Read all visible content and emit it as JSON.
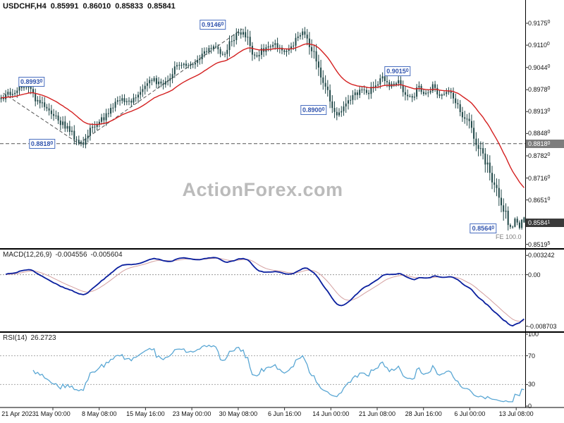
{
  "header": {
    "symbol_timeframe": "USDCHF,H4",
    "open": "0.85991",
    "high": "0.86010",
    "low": "0.85833",
    "close": "0.85841"
  },
  "watermark": "ActionForex.com",
  "chart_data": {
    "type": "candlestick",
    "symbol": "USDCHF",
    "timeframe": "H4",
    "current": {
      "open": 0.85991,
      "high": 0.8601,
      "low": 0.85833,
      "close": 0.85841
    },
    "bar_count": 230,
    "x_ticks": [
      {
        "label": "21 Apr 2023",
        "x": 0.003,
        "align": "left"
      },
      {
        "label": "1 May 00:00",
        "x": 0.1007
      },
      {
        "label": "8 May 08:00",
        "x": 0.1889
      },
      {
        "label": "15 May 16:00",
        "x": 0.277
      },
      {
        "label": "23 May 00:00",
        "x": 0.3652
      },
      {
        "label": "30 May 08:00",
        "x": 0.4535
      },
      {
        "label": "6 Jun 16:00",
        "x": 0.5417
      },
      {
        "label": "14 Jun 00:00",
        "x": 0.6299
      },
      {
        "label": "21 Jun 08:00",
        "x": 0.7181
      },
      {
        "label": "28 Jun 16:00",
        "x": 0.8063
      },
      {
        "label": "6 Jul 00:00",
        "x": 0.8945
      },
      {
        "label": "13 Jul 08:00",
        "x": 0.9828
      }
    ],
    "price_panel": {
      "y_range": [
        0.8508,
        0.9244
      ],
      "y_ticks": [
        {
          "value": 0.9175,
          "label": "0.91750"
        },
        {
          "value": 0.911,
          "label": "0.91100"
        },
        {
          "value": 0.9044,
          "label": "0.90440"
        },
        {
          "value": 0.8978,
          "label": "0.89780"
        },
        {
          "value": 0.8913,
          "label": "0.89130"
        },
        {
          "value": 0.8848,
          "label": "0.88480"
        },
        {
          "value": 0.8782,
          "label": "0.87820"
        },
        {
          "value": 0.8716,
          "label": "0.87160"
        },
        {
          "value": 0.8651,
          "label": "0.86510"
        },
        {
          "value": 0.85195,
          "label": "0.85195"
        }
      ],
      "dashed_level": 0.8818,
      "trend_lines": [
        {
          "x1": 0.006,
          "p1": 0.8968,
          "x2": 0.15,
          "p2": 0.8818
        },
        {
          "x1": 0.15,
          "p1": 0.8818,
          "x2": 0.461,
          "p2": 0.9158
        }
      ],
      "markers": [
        {
          "label": "0.91460",
          "x": 0.405,
          "price": 0.917
        },
        {
          "label": "0.89930",
          "x": 0.06,
          "price": 0.9001
        },
        {
          "label": "0.88180",
          "x": 0.08,
          "price": 0.8818
        },
        {
          "label": "0.90150",
          "x": 0.757,
          "price": 0.9032
        },
        {
          "label": "0.89000",
          "x": 0.597,
          "price": 0.8918
        },
        {
          "label": "0.85640",
          "x": 0.92,
          "price": 0.8566
        }
      ],
      "axis_badges": [
        {
          "name": "level-price-badge",
          "label": "0.88180",
          "value": 0.8818,
          "bg": "#7d7d7d"
        },
        {
          "name": "current-price-badge",
          "label": "0.85841",
          "value": 0.85841,
          "bg": "#3a3a3a"
        }
      ],
      "fe_label": "FE 100.0"
    },
    "price_path": [
      [
        0.0,
        0.895
      ],
      [
        0.027,
        0.8976
      ],
      [
        0.047,
        0.8993
      ],
      [
        0.074,
        0.8938
      ],
      [
        0.101,
        0.8898
      ],
      [
        0.128,
        0.8858
      ],
      [
        0.15,
        0.882
      ],
      [
        0.158,
        0.8825
      ],
      [
        0.174,
        0.8868
      ],
      [
        0.201,
        0.8898
      ],
      [
        0.228,
        0.8952
      ],
      [
        0.248,
        0.8938
      ],
      [
        0.268,
        0.8968
      ],
      [
        0.289,
        0.9008
      ],
      [
        0.309,
        0.8988
      ],
      [
        0.329,
        0.9036
      ],
      [
        0.349,
        0.9058
      ],
      [
        0.369,
        0.9044
      ],
      [
        0.389,
        0.9086
      ],
      [
        0.409,
        0.9108
      ],
      [
        0.427,
        0.9082
      ],
      [
        0.446,
        0.9136
      ],
      [
        0.463,
        0.9152
      ],
      [
        0.483,
        0.9078
      ],
      [
        0.503,
        0.91
      ],
      [
        0.523,
        0.9122
      ],
      [
        0.54,
        0.9088
      ],
      [
        0.557,
        0.9108
      ],
      [
        0.574,
        0.9148
      ],
      [
        0.591,
        0.9112
      ],
      [
        0.604,
        0.9052
      ],
      [
        0.62,
        0.8988
      ],
      [
        0.634,
        0.8928
      ],
      [
        0.647,
        0.8902
      ],
      [
        0.66,
        0.8938
      ],
      [
        0.674,
        0.8958
      ],
      [
        0.687,
        0.8984
      ],
      [
        0.701,
        0.8958
      ],
      [
        0.714,
        0.8998
      ],
      [
        0.732,
        0.9014
      ],
      [
        0.745,
        0.8988
      ],
      [
        0.758,
        0.9008
      ],
      [
        0.772,
        0.8968
      ],
      [
        0.785,
        0.895
      ],
      [
        0.799,
        0.8984
      ],
      [
        0.812,
        0.8968
      ],
      [
        0.826,
        0.8988
      ],
      [
        0.839,
        0.8958
      ],
      [
        0.852,
        0.8974
      ],
      [
        0.866,
        0.8946
      ],
      [
        0.879,
        0.8918
      ],
      [
        0.893,
        0.8878
      ],
      [
        0.903,
        0.8848
      ],
      [
        0.915,
        0.8798
      ],
      [
        0.926,
        0.8762
      ],
      [
        0.937,
        0.8722
      ],
      [
        0.948,
        0.8678
      ],
      [
        0.956,
        0.8644
      ],
      [
        0.964,
        0.8608
      ],
      [
        0.972,
        0.8572
      ],
      [
        0.977,
        0.856
      ],
      [
        0.982,
        0.86
      ],
      [
        0.987,
        0.8578
      ],
      [
        0.992,
        0.8565
      ],
      [
        0.996,
        0.8599
      ],
      [
        1.0,
        0.85841
      ]
    ],
    "macd_panel": {
      "label": "MACD(12,26,9)",
      "value_macd": "-0.004556",
      "value_signal": "-0.005604",
      "y_range": [
        -0.00957,
        0.00423
      ],
      "y_ticks": [
        {
          "value": 0.003242,
          "label": "0.003242"
        },
        {
          "value": 0,
          "label": "0.00"
        },
        {
          "value": -0.008703,
          "label": "-0.008703"
        }
      ]
    },
    "rsi_panel": {
      "label": "RSI(14)",
      "value": "26.2723",
      "levels": [
        70,
        30
      ],
      "y_ticks": [
        {
          "value": 100,
          "label": "100"
        },
        {
          "value": 70,
          "label": "70"
        },
        {
          "value": 30,
          "label": "30"
        },
        {
          "value": 0,
          "label": "0"
        }
      ]
    },
    "colors": {
      "candle": "#1f4747",
      "ma": "#d42020",
      "macd": "#0a1f9e",
      "macd_signal": "#d4a0a0",
      "rsi": "#5aa7d4",
      "marker_border": "#4a6fc0",
      "marker_text": "#3154ae",
      "badge_level_bg": "#7d7d7d",
      "badge_current_bg": "#3a3a3a",
      "watermark": "#bbbbbb"
    }
  }
}
